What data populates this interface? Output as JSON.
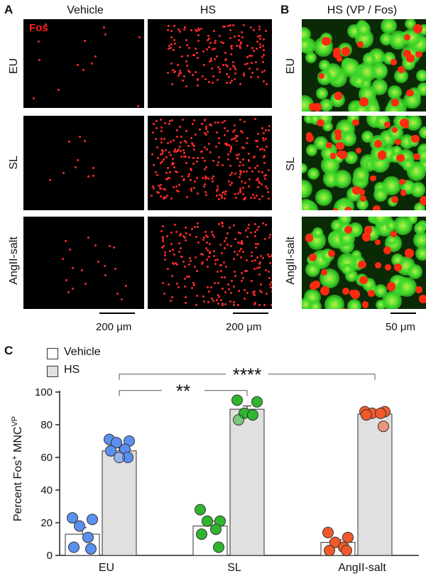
{
  "panel_a": {
    "letter": "A",
    "columns": [
      "Vehicle",
      "HS"
    ],
    "rows": [
      "EU",
      "SL",
      "AngII-salt"
    ],
    "stain_label": "Fos",
    "scale_label": "200 μm"
  },
  "panel_b": {
    "letter": "B",
    "title": "HS (VP / Fos)",
    "rows": [
      "EU",
      "SL",
      "AngII-salt"
    ],
    "scale_label": "50 μm"
  },
  "colors": {
    "fos_red": "#ff2a2a",
    "vp_green": "#2fd21f",
    "eu_blue": "#5b8ff0",
    "sl_green": "#2fb52f",
    "angii_orange": "#f25a2a",
    "bar_vehicle": "#ffffff",
    "bar_hs": "#e0e0e0"
  },
  "chart_data": {
    "letter": "C",
    "type": "bar",
    "categories": [
      "EU",
      "SL",
      "AngII-salt"
    ],
    "ylabel_main": "Percent Fos",
    "ylabel_sup1": "+",
    "ylabel_mid": " MNC",
    "ylabel_sup2": "VP",
    "ylim": [
      0,
      100
    ],
    "yticks": [
      "0",
      "20",
      "40",
      "60",
      "80",
      "100"
    ],
    "legend": {
      "placement": "top-left",
      "entries": [
        "Vehicle",
        "HS"
      ]
    },
    "series": [
      {
        "name": "Vehicle",
        "values": [
          13,
          18,
          8
        ],
        "errors": [
          4,
          3,
          1.5
        ],
        "points": [
          [
            23,
            22,
            18,
            11,
            5,
            4
          ],
          [
            28,
            21,
            21,
            16,
            13,
            5
          ],
          [
            14,
            11,
            8,
            5,
            3,
            3
          ]
        ]
      },
      {
        "name": "HS",
        "values": [
          64,
          89.5,
          86.5
        ],
        "errors": [
          2,
          2,
          1
        ],
        "points": [
          [
            71,
            70,
            69,
            65,
            64,
            60,
            60
          ],
          [
            95,
            94,
            87,
            86,
            83
          ],
          [
            88,
            88,
            87,
            87,
            86,
            79
          ]
        ]
      }
    ],
    "annotations": [
      {
        "text": "**",
        "from": 0,
        "to": 1
      },
      {
        "text": "****",
        "from": 0,
        "to": 2
      }
    ]
  }
}
